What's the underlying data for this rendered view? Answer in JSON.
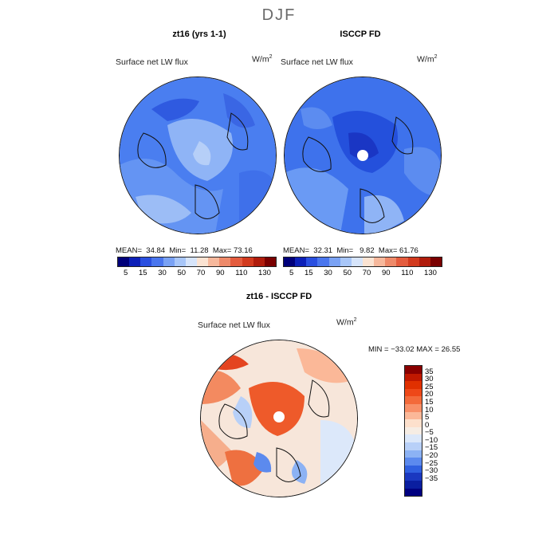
{
  "figure": {
    "title": "DJF"
  },
  "panels": [
    {
      "title": "zt16 (yrs 1-1)",
      "variable": "Surface net LW flux",
      "units_base": "W/m",
      "units_exp": "2",
      "stats": {
        "mean_label": "MEAN=",
        "mean": "34.84",
        "min_label": "Min=",
        "min": "11.28",
        "max_label": "Max=",
        "max": "73.16"
      }
    },
    {
      "title": "ISCCP FD",
      "variable": "Surface net LW flux",
      "units_base": "W/m",
      "units_exp": "2",
      "stats": {
        "mean_label": "MEAN=",
        "mean": "32.31",
        "min_label": "Min=",
        "min": "9.82",
        "max_label": "Max=",
        "max": "61.76"
      }
    },
    {
      "title": "zt16 - ISCCP FD",
      "variable": "Surface net LW flux",
      "units_base": "W/m",
      "units_exp": "2",
      "stats_text": "MIN = −33.02 MAX =  26.55"
    }
  ],
  "colorbar_abs": {
    "tick_labels": [
      "5",
      "15",
      "30",
      "50",
      "70",
      "90",
      "110",
      "130"
    ],
    "colors": [
      "#00007a",
      "#0c20b8",
      "#2a4fe0",
      "#4a76ee",
      "#7aa2f4",
      "#a8c6f8",
      "#d6e4fa",
      "#fbe3d2",
      "#f6b89c",
      "#ee8a6a",
      "#e45c3e",
      "#d23a1e",
      "#b01c0c",
      "#7a0000"
    ]
  },
  "colorbar_diff": {
    "tick_labels": [
      "35",
      "30",
      "25",
      "20",
      "15",
      "10",
      "5",
      "0",
      "−5",
      "−10",
      "−15",
      "−20",
      "−25",
      "−30",
      "−35"
    ],
    "colors": [
      "#8a0000",
      "#c01800",
      "#e03000",
      "#ee4818",
      "#f36a3a",
      "#f89068",
      "#fbb898",
      "#fde0cc",
      "#f6ede4",
      "#dce8fa",
      "#b8d0f8",
      "#8cb2f4",
      "#5c8aee",
      "#3060e0",
      "#1a38c0",
      "#0a1ea0",
      "#000080"
    ]
  }
}
